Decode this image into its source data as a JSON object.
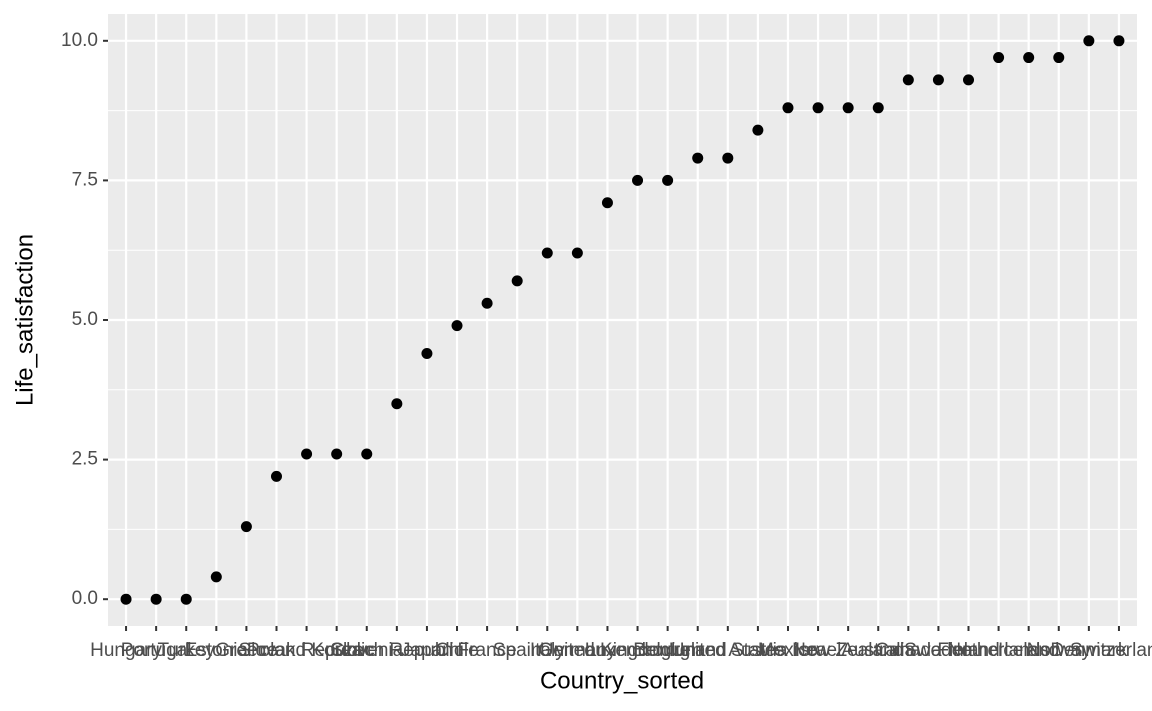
{
  "chart_data": {
    "type": "scatter",
    "x_label": "Country_sorted",
    "y_label": "Life_satisfaction",
    "categories": [
      "Hungary",
      "Portugal",
      "Turkey",
      "Estonia",
      "Greece",
      "Poland",
      "Slovak Republic",
      "Korea",
      "Slovenia",
      "Czech Republic",
      "Japan",
      "Chile",
      "France",
      "Spain",
      "Italy",
      "Germany",
      "United Kingdom",
      "Luxembourg",
      "Belgium",
      "Ireland",
      "United States",
      "Austria",
      "Mexico",
      "Israel",
      "New Zealand",
      "Australia",
      "Canada",
      "Sweden",
      "Finland",
      "Netherlands",
      "Iceland",
      "Norway",
      "Denmark",
      "Switzerland"
    ],
    "values": [
      0,
      0,
      0,
      0.4,
      1.3,
      2.2,
      2.6,
      2.6,
      2.6,
      3.5,
      4.4,
      4.9,
      5.3,
      5.7,
      6.2,
      6.2,
      7.1,
      7.5,
      7.5,
      7.9,
      7.9,
      8.4,
      8.8,
      8.8,
      8.8,
      8.8,
      9.3,
      9.3,
      9.3,
      9.7,
      9.7,
      9.7,
      10,
      10
    ],
    "color": "#000000",
    "ylim": [
      -0.48,
      10.48
    ],
    "yticks": [
      {
        "value": 0,
        "label": "0.0"
      },
      2.5,
      {
        "value": 5,
        "label": "5.0"
      },
      7.5,
      {
        "value": 10,
        "label": "10.0"
      }
    ],
    "grid": true
  }
}
